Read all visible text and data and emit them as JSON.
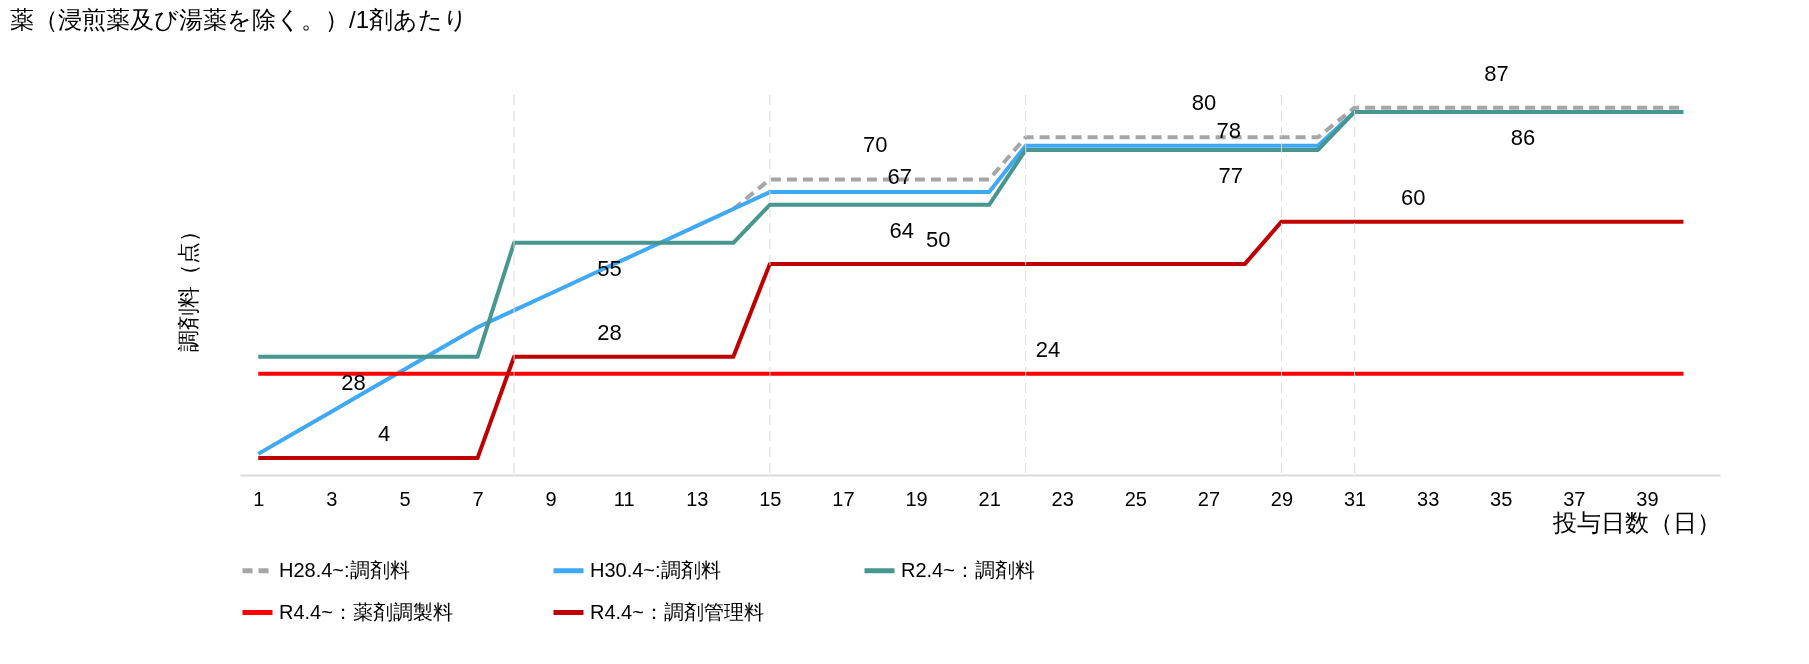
{
  "chart_data": {
    "type": "line",
    "title": "薬（浸煎薬及び湯薬を除く。）/1剤あたり",
    "xlabel": "投与日数（日）",
    "ylabel": "調剤料（点）",
    "x": [
      1,
      2,
      3,
      4,
      5,
      6,
      7,
      8,
      9,
      10,
      11,
      12,
      13,
      14,
      15,
      16,
      17,
      18,
      19,
      20,
      21,
      22,
      23,
      24,
      25,
      26,
      27,
      28,
      29,
      30,
      31,
      32,
      33,
      34,
      35,
      36,
      37,
      38,
      39,
      40
    ],
    "xlim": [
      0.5,
      41
    ],
    "xticks": [
      1,
      3,
      5,
      7,
      9,
      11,
      13,
      15,
      17,
      19,
      21,
      23,
      25,
      27,
      29,
      31,
      33,
      35,
      37,
      39
    ],
    "legend": "bottom",
    "grid": false,
    "tick_labels": "x",
    "marker": "none",
    "series": [
      {
        "name": "H28.4~:調剤料",
        "color": "#a6a6a6",
        "line_style": "dashed",
        "values": [
          null,
          null,
          null,
          null,
          null,
          null,
          null,
          null,
          null,
          null,
          null,
          null,
          null,
          63,
          70,
          70,
          70,
          70,
          70,
          70,
          70,
          80,
          80,
          80,
          80,
          80,
          80,
          80,
          80,
          80,
          87,
          87,
          87,
          87,
          87,
          87,
          87,
          87,
          87,
          87
        ],
        "value_labels": [
          null,
          null,
          null,
          null,
          null,
          null,
          null,
          null,
          null,
          null,
          null,
          null,
          null,
          null,
          null,
          null,
          "70",
          null,
          null,
          null,
          null,
          null,
          null,
          null,
          null,
          "80",
          null,
          null,
          null,
          null,
          null,
          null,
          null,
          "87",
          null,
          null,
          null,
          null,
          null,
          null
        ]
      },
      {
        "name": "H30.4~:調剤料",
        "color": "#3fa9f5",
        "line_style": "solid",
        "values": [
          5,
          10,
          15,
          20,
          25,
          30,
          35,
          39,
          43,
          47,
          51,
          55,
          59,
          63,
          67,
          67,
          67,
          67,
          67,
          67,
          67,
          78,
          78,
          78,
          78,
          78,
          78,
          78,
          78,
          78,
          86,
          null,
          null,
          null,
          null,
          null,
          null,
          null,
          null,
          null
        ],
        "value_labels": [
          null,
          null,
          null,
          null,
          null,
          null,
          null,
          null,
          null,
          null,
          null,
          null,
          null,
          null,
          null,
          null,
          null,
          "67",
          null,
          null,
          null,
          null,
          null,
          null,
          null,
          null,
          "78",
          null,
          null,
          null,
          null,
          null,
          null,
          null,
          null,
          null,
          null,
          null,
          null,
          null
        ]
      },
      {
        "name": "R2.4~：調剤料",
        "color": "#47968f",
        "line_style": "solid",
        "values": [
          28,
          28,
          28,
          28,
          28,
          28,
          28,
          55,
          55,
          55,
          55,
          55,
          55,
          55,
          64,
          64,
          64,
          64,
          64,
          64,
          64,
          77,
          77,
          77,
          77,
          77,
          77,
          77,
          77,
          77,
          86,
          86,
          86,
          86,
          86,
          86,
          86,
          86,
          86,
          86
        ],
        "value_labels": [
          null,
          null,
          "28",
          null,
          null,
          null,
          null,
          null,
          null,
          "55",
          null,
          null,
          null,
          null,
          null,
          null,
          null,
          "64",
          null,
          null,
          null,
          null,
          null,
          null,
          null,
          null,
          "77",
          null,
          null,
          null,
          null,
          null,
          null,
          null,
          "86",
          null,
          null,
          null,
          null,
          null
        ]
      },
      {
        "name": "R4.4~：薬剤調製料",
        "color": "#ff0000",
        "line_style": "solid",
        "values": [
          24,
          24,
          24,
          24,
          24,
          24,
          24,
          24,
          24,
          24,
          24,
          24,
          24,
          24,
          24,
          24,
          24,
          24,
          24,
          24,
          24,
          24,
          24,
          24,
          24,
          24,
          24,
          24,
          24,
          24,
          24,
          24,
          24,
          24,
          24,
          24,
          24,
          24,
          24,
          24
        ],
        "value_labels": [
          null,
          null,
          null,
          null,
          null,
          null,
          null,
          null,
          null,
          null,
          null,
          null,
          null,
          null,
          null,
          null,
          null,
          null,
          null,
          null,
          null,
          "24",
          null,
          null,
          null,
          null,
          null,
          null,
          null,
          null,
          null,
          null,
          null,
          null,
          null,
          null,
          null,
          null,
          null,
          null
        ]
      },
      {
        "name": "R4.4~：調剤管理料",
        "color": "#c00000",
        "line_style": "solid",
        "values": [
          4,
          4,
          4,
          4,
          4,
          4,
          4,
          28,
          28,
          28,
          28,
          28,
          28,
          28,
          50,
          50,
          50,
          50,
          50,
          50,
          50,
          50,
          50,
          50,
          50,
          50,
          50,
          50,
          60,
          60,
          60,
          60,
          60,
          60,
          60,
          60,
          60,
          60,
          60,
          60
        ],
        "value_labels": [
          null,
          null,
          null,
          "4",
          null,
          null,
          null,
          null,
          null,
          "28",
          null,
          null,
          null,
          null,
          null,
          null,
          null,
          null,
          "50",
          null,
          null,
          null,
          null,
          null,
          null,
          null,
          null,
          null,
          null,
          null,
          null,
          "60",
          null,
          null,
          null,
          null,
          null,
          null,
          null,
          null
        ]
      }
    ],
    "ref_lines": [
      {
        "axis": "x",
        "value": 8,
        "color": "#d9d9d9",
        "line_style": "dashed"
      },
      {
        "axis": "x",
        "value": 15,
        "color": "#d9d9d9",
        "line_style": "dashed"
      },
      {
        "axis": "x",
        "value": 22,
        "color": "#d9d9d9",
        "line_style": "dashed"
      },
      {
        "axis": "x",
        "value": 29,
        "color": "#d9d9d9",
        "line_style": "dashed"
      },
      {
        "axis": "x",
        "value": 31,
        "color": "#d9d9d9",
        "line_style": "dashed"
      }
    ]
  }
}
